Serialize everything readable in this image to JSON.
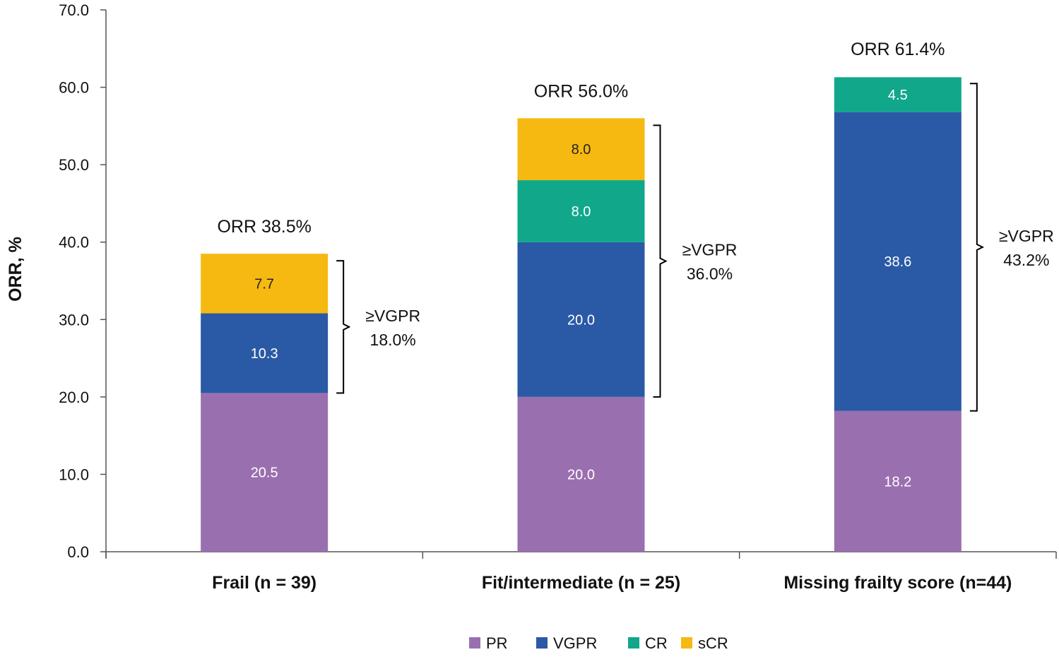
{
  "chart_data": {
    "type": "bar",
    "stacked": true,
    "title": "",
    "xlabel": "",
    "ylabel": "ORR, %",
    "ylim": [
      0,
      70
    ],
    "yticks": [
      "0.0",
      "10.0",
      "20.0",
      "30.0",
      "40.0",
      "50.0",
      "60.0",
      "70.0"
    ],
    "categories": [
      "Frail (n = 39)",
      "Fit/intermediate (n = 25)",
      "Missing frailty score (n=44)"
    ],
    "series": [
      {
        "name": "PR",
        "color": "#9a6faf",
        "values": [
          20.5,
          20.0,
          18.2
        ]
      },
      {
        "name": "VGPR",
        "color": "#2a5aa5",
        "values": [
          10.3,
          20.0,
          38.6
        ]
      },
      {
        "name": "CR",
        "color": "#10a78b",
        "values": [
          0,
          8.0,
          4.5
        ]
      },
      {
        "name": "sCR",
        "color": "#f6b911",
        "values": [
          7.7,
          8.0,
          0
        ]
      }
    ],
    "segment_labels": [
      [
        "20.5",
        "10.3",
        "",
        "7.7"
      ],
      [
        "20.0",
        "20.0",
        "8.0",
        "8.0"
      ],
      [
        "18.2",
        "38.6",
        "4.5",
        ""
      ]
    ],
    "totals": [
      38.5,
      56.0,
      61.4
    ],
    "orr_labels": [
      "ORR 38.5%",
      "ORR 56.0%",
      "ORR 61.4%"
    ],
    "vgpr_brackets": [
      {
        "from": 20.5,
        "to": 38.5,
        "line1": "≥VGPR",
        "line2": "18.0%"
      },
      {
        "from": 20.0,
        "to": 56.0,
        "line1": "≥VGPR",
        "line2": "36.0%"
      },
      {
        "from": 18.2,
        "to": 61.4,
        "line1": "≥VGPR",
        "line2": "43.2%"
      }
    ],
    "legend": {
      "position": "bottom",
      "items": [
        "PR",
        "VGPR",
        "CR",
        "sCR"
      ]
    },
    "grid": false
  }
}
